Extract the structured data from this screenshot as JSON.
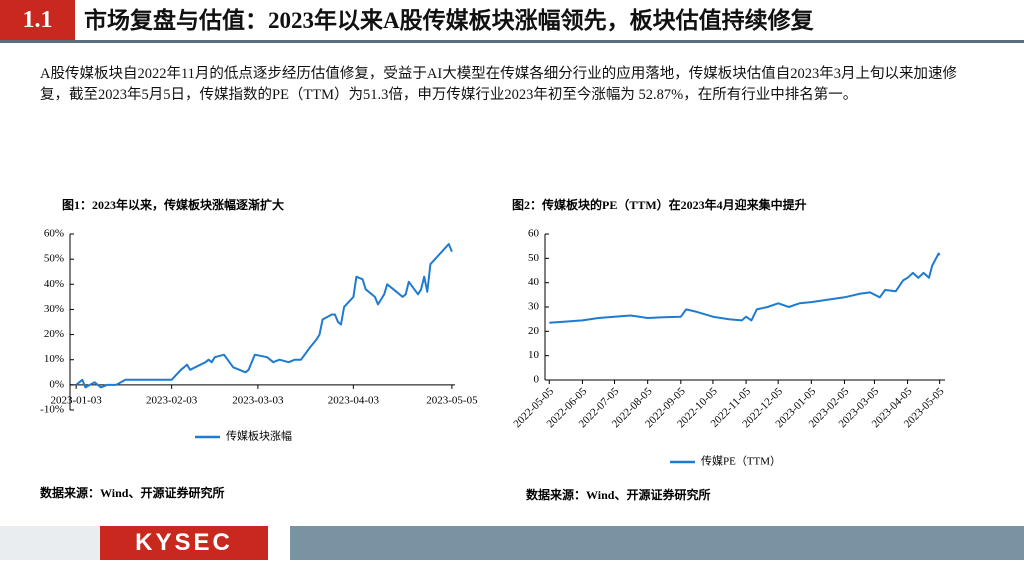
{
  "header": {
    "section": "1.1",
    "title": "市场复盘与估值：2023年以来A股传媒板块涨幅领先，板块估值持续修复"
  },
  "body": "A股传媒板块自2022年11月的低点逐步经历估值修复，受益于AI大模型在传媒各细分行业的应用落地，传媒板块估值自2023年3月上旬以来加速修复，截至2023年5月5日，传媒指数的PE（TTM）为51.3倍，申万传媒行业2023年初至今涨幅为 52.87%，在所有行业中排名第一。",
  "footer": {
    "logo": "KYSEC"
  },
  "chart_data": [
    {
      "type": "line",
      "title": "图1：2023年以来，传媒板块涨幅逐渐扩大",
      "source": "数据来源：Wind、开源证券研究所",
      "x": [
        "2023-01-03",
        "2023-01-05",
        "2023-01-06",
        "2023-01-09",
        "2023-01-11",
        "2023-01-13",
        "2023-01-16",
        "2023-01-19",
        "2023-01-30",
        "2023-02-03",
        "2023-02-06",
        "2023-02-07",
        "2023-02-08",
        "2023-02-09",
        "2023-02-14",
        "2023-02-15",
        "2023-02-16",
        "2023-02-17",
        "2023-02-20",
        "2023-02-23",
        "2023-02-27",
        "2023-02-28",
        "2023-03-02",
        "2023-03-06",
        "2023-03-08",
        "2023-03-10",
        "2023-03-13",
        "2023-03-15",
        "2023-03-17",
        "2023-03-20",
        "2023-03-22",
        "2023-03-23",
        "2023-03-24",
        "2023-03-27",
        "2023-03-28",
        "2023-03-29",
        "2023-03-30",
        "2023-03-31",
        "2023-04-03",
        "2023-04-04",
        "2023-04-06",
        "2023-04-07",
        "2023-04-10",
        "2023-04-11",
        "2023-04-13",
        "2023-04-14",
        "2023-04-17",
        "2023-04-19",
        "2023-04-20",
        "2023-04-21",
        "2023-04-24",
        "2023-04-25",
        "2023-04-26",
        "2023-04-27",
        "2023-04-28",
        "2023-05-04",
        "2023-05-05"
      ],
      "series": [
        {
          "name": "传媒板块涨幅",
          "color": "#1f7bd0",
          "values": [
            0,
            2,
            -1,
            1,
            -1,
            0,
            0,
            2,
            2,
            2,
            6,
            7,
            8,
            6,
            9,
            10,
            9,
            11,
            12,
            7,
            5,
            6,
            12,
            11,
            9,
            10,
            9,
            10,
            10,
            15,
            18,
            20,
            26,
            28,
            28,
            25,
            24,
            31,
            35,
            43,
            42,
            38,
            35,
            32,
            36,
            40,
            37,
            35,
            36,
            41,
            36,
            38,
            43,
            37,
            48,
            56,
            53
          ]
        }
      ],
      "xlim": [
        "2023-01-01",
        "2023-05-06"
      ],
      "xticks": [
        "2023-01-03",
        "2023-02-03",
        "2023-03-03",
        "2023-04-03",
        "2023-05-05"
      ],
      "ylim": [
        -10,
        60
      ],
      "yticks": [
        {
          "value": -10,
          "label": "-10%"
        },
        {
          "value": 0,
          "label": "0%"
        },
        {
          "value": 10,
          "label": "10%"
        },
        {
          "value": 20,
          "label": "20%"
        },
        {
          "value": 30,
          "label": "30%"
        },
        {
          "value": 40,
          "label": "40%"
        },
        {
          "value": 50,
          "label": "50%"
        },
        {
          "value": 60,
          "label": "60%"
        }
      ],
      "grid": false
    },
    {
      "type": "line",
      "title": "图2：传媒板块的PE（TTM）在2023年4月迎来集中提升",
      "source": "数据来源：Wind、开源证券研究所",
      "x": [
        "2022-05-05",
        "2022-05-20",
        "2022-06-05",
        "2022-06-20",
        "2022-07-05",
        "2022-07-20",
        "2022-08-05",
        "2022-08-20",
        "2022-09-05",
        "2022-09-10",
        "2022-09-20",
        "2022-10-05",
        "2022-10-20",
        "2022-11-01",
        "2022-11-05",
        "2022-11-10",
        "2022-11-15",
        "2022-11-25",
        "2022-12-05",
        "2022-12-15",
        "2022-12-25",
        "2023-01-05",
        "2023-01-20",
        "2023-02-05",
        "2023-02-20",
        "2023-03-01",
        "2023-03-10",
        "2023-03-15",
        "2023-03-25",
        "2023-04-01",
        "2023-04-05",
        "2023-04-10",
        "2023-04-15",
        "2023-04-20",
        "2023-04-25",
        "2023-04-28",
        "2023-05-04",
        "2023-05-05"
      ],
      "series": [
        {
          "name": "传媒PE（TTM）",
          "color": "#1f7bd0",
          "values": [
            23.5,
            24,
            24.5,
            25.5,
            26,
            26.5,
            25.5,
            25.8,
            26,
            29,
            28,
            26,
            25,
            24.5,
            26,
            24.5,
            29,
            30,
            31.5,
            30,
            31.5,
            32,
            33,
            34,
            35.5,
            36,
            34,
            37,
            36.5,
            41,
            42,
            44,
            42,
            44,
            42,
            47,
            52,
            51.3
          ]
        }
      ],
      "xlim": [
        "2022-05-01",
        "2023-05-10"
      ],
      "xticks": [
        "2022-05-05",
        "2022-06-05",
        "2022-07-05",
        "2022-08-05",
        "2022-09-05",
        "2022-10-05",
        "2022-11-05",
        "2022-12-05",
        "2023-01-05",
        "2023-02-05",
        "2023-03-05",
        "2023-04-05",
        "2023-05-05"
      ],
      "ylim": [
        0,
        60
      ],
      "yticks": [
        0,
        10,
        20,
        30,
        40,
        50,
        60
      ],
      "grid": false
    }
  ]
}
